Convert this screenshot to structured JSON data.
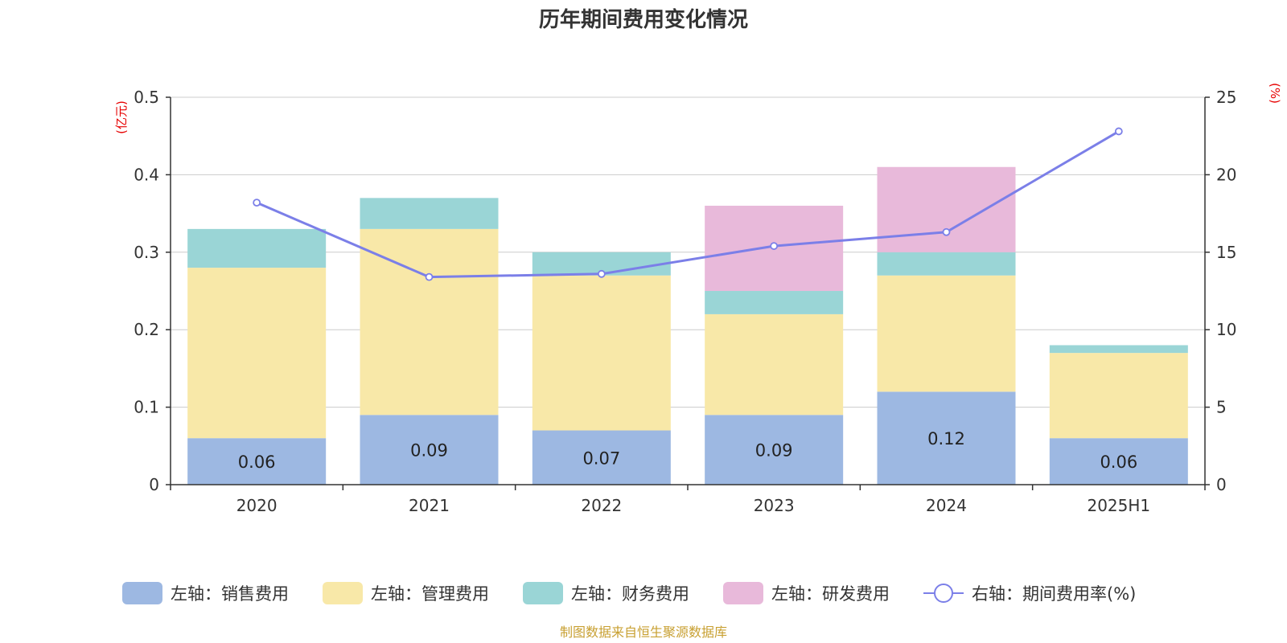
{
  "chart_data": {
    "type": "bar",
    "stacked": true,
    "title": "历年期间费用变化情况",
    "left_axis_unit": "(亿元)",
    "right_axis_unit": "(%)",
    "categories": [
      "2020",
      "2021",
      "2022",
      "2023",
      "2024",
      "2025H1"
    ],
    "ylim_left": [
      0,
      0.5
    ],
    "yticks_left": [
      "0",
      "0.1",
      "0.2",
      "0.3",
      "0.4",
      "0.5"
    ],
    "ylim_right": [
      0,
      25
    ],
    "yticks_right": [
      "0",
      "5",
      "10",
      "15",
      "20",
      "25"
    ],
    "grid": true,
    "legend_position": "bottom",
    "series": [
      {
        "name": "左轴：销售费用",
        "kind": "bar",
        "color": "#9db8e2",
        "values": [
          0.06,
          0.09,
          0.07,
          0.09,
          0.12,
          0.06
        ],
        "labels": [
          "0.06",
          "0.09",
          "0.07",
          "0.09",
          "0.12",
          "0.06"
        ]
      },
      {
        "name": "左轴：管理费用",
        "kind": "bar",
        "color": "#f8e8a8",
        "values": [
          0.22,
          0.24,
          0.2,
          0.13,
          0.15,
          0.11
        ]
      },
      {
        "name": "左轴：财务费用",
        "kind": "bar",
        "color": "#9ad5d6",
        "values": [
          0.05,
          0.04,
          0.03,
          0.03,
          0.03,
          0.01
        ]
      },
      {
        "name": "左轴：研发费用",
        "kind": "bar",
        "color": "#e8b9da",
        "values": [
          0,
          0,
          0,
          0.11,
          0.11,
          0
        ]
      },
      {
        "name": "右轴：期间费用率(%)",
        "kind": "line",
        "axis": "right",
        "color": "#7b7fe8",
        "values": [
          18.2,
          13.4,
          13.6,
          15.4,
          16.3,
          22.8
        ]
      }
    ],
    "source": "制图数据来自恒生聚源数据库"
  }
}
